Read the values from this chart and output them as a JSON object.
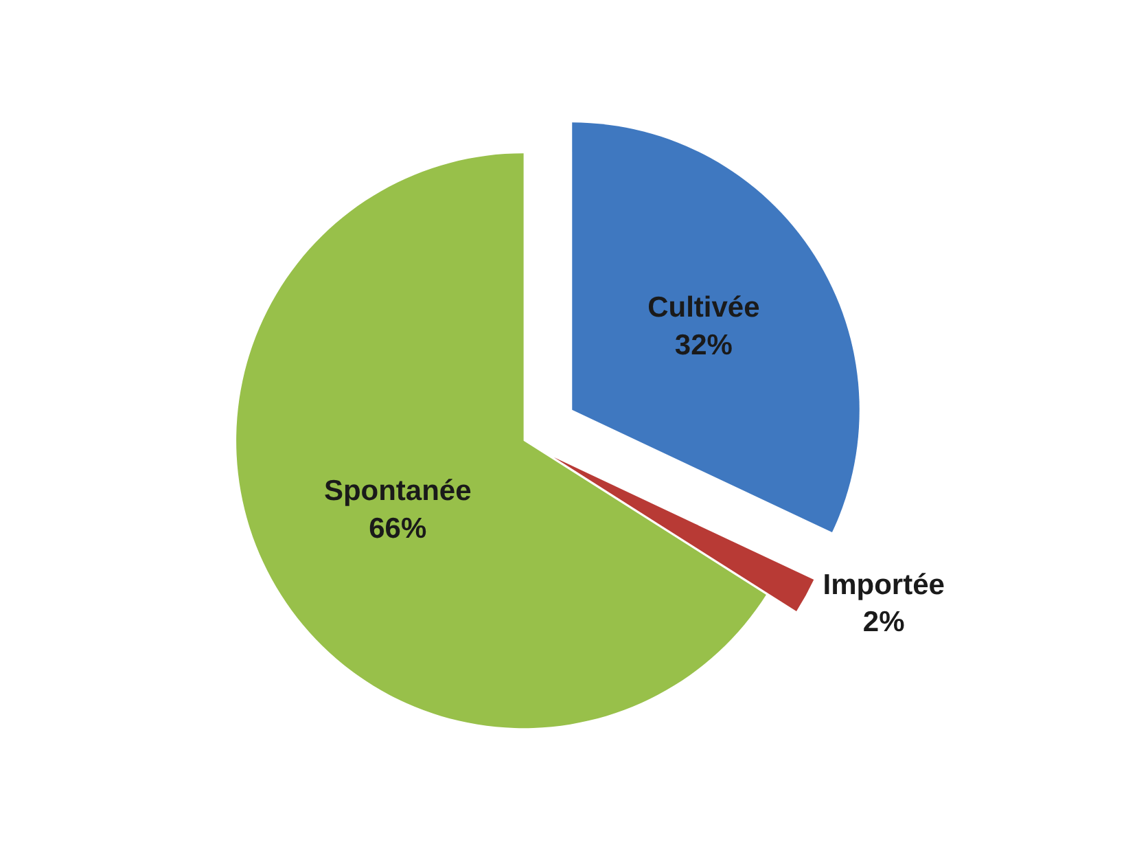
{
  "chart_data": {
    "type": "pie",
    "categories": [
      "Cultivée",
      "Importée",
      "Spontanée"
    ],
    "values": [
      32,
      2,
      66
    ],
    "value_labels": [
      "32%",
      "2%",
      "66%"
    ],
    "colors": [
      "#3f78c0",
      "#b83a35",
      "#98c04a"
    ],
    "data_labels": true,
    "legend": false
  }
}
